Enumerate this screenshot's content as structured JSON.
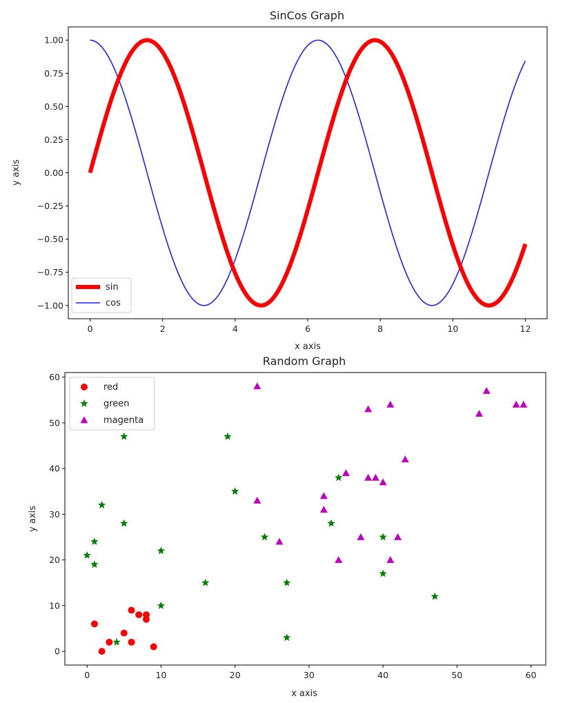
{
  "chart_data": [
    {
      "type": "line",
      "title": "SinCos Graph",
      "xlabel": "x axis",
      "ylabel": "y axis",
      "xlim": [
        -0.6,
        12.6
      ],
      "ylim": [
        -1.1,
        1.1
      ],
      "xticks": [
        "0",
        "2",
        "4",
        "6",
        "8",
        "10",
        "12"
      ],
      "yticks": [
        "−1.00",
        "−0.75",
        "−0.50",
        "−0.25",
        "0.00",
        "0.25",
        "0.50",
        "0.75",
        "1.00"
      ],
      "grid": false,
      "legend_position": "lower-left",
      "series": [
        {
          "name": "sin",
          "function": "sin",
          "x_range": [
            0,
            12
          ],
          "color": "#ff0000",
          "line_style": "thick"
        },
        {
          "name": "cos",
          "function": "cos",
          "x_range": [
            0,
            12
          ],
          "color": "#1f1fff",
          "line_style": "thin"
        }
      ]
    },
    {
      "type": "scatter",
      "title": "Random Graph",
      "xlabel": "x axis",
      "ylabel": "y axis",
      "xlim": [
        -3,
        62
      ],
      "ylim": [
        -3,
        61
      ],
      "xticks": [
        "0",
        "10",
        "20",
        "30",
        "40",
        "50",
        "60"
      ],
      "yticks": [
        "0",
        "10",
        "20",
        "30",
        "40",
        "50",
        "60"
      ],
      "grid": false,
      "legend_position": "upper-left",
      "series": [
        {
          "name": "red",
          "marker": "circle",
          "color": "#ff0000",
          "points": [
            [
              1,
              6
            ],
            [
              2,
              0
            ],
            [
              3,
              2
            ],
            [
              5,
              4
            ],
            [
              6,
              2
            ],
            [
              6,
              9
            ],
            [
              7,
              8
            ],
            [
              8,
              8
            ],
            [
              8,
              7
            ],
            [
              9,
              1
            ]
          ]
        },
        {
          "name": "green",
          "marker": "star",
          "color": "#008000",
          "points": [
            [
              0,
              21
            ],
            [
              1,
              19
            ],
            [
              1,
              24
            ],
            [
              2,
              32
            ],
            [
              4,
              2
            ],
            [
              5,
              28
            ],
            [
              5,
              47
            ],
            [
              10,
              22
            ],
            [
              10,
              10
            ],
            [
              16,
              15
            ],
            [
              19,
              47
            ],
            [
              20,
              35
            ],
            [
              24,
              25
            ],
            [
              27,
              15
            ],
            [
              27,
              3
            ],
            [
              33,
              28
            ],
            [
              34,
              38
            ],
            [
              40,
              25
            ],
            [
              40,
              17
            ],
            [
              47,
              12
            ]
          ]
        },
        {
          "name": "magenta",
          "marker": "triangle",
          "color": "#bf00bf",
          "points": [
            [
              23,
              58
            ],
            [
              23,
              33
            ],
            [
              26,
              24
            ],
            [
              32,
              34
            ],
            [
              32,
              31
            ],
            [
              34,
              20
            ],
            [
              35,
              39
            ],
            [
              37,
              25
            ],
            [
              38,
              53
            ],
            [
              38,
              38
            ],
            [
              39,
              38
            ],
            [
              40,
              37
            ],
            [
              41,
              54
            ],
            [
              41,
              20
            ],
            [
              42,
              25
            ],
            [
              43,
              42
            ],
            [
              53,
              52
            ],
            [
              54,
              57
            ],
            [
              58,
              54
            ],
            [
              59,
              54
            ]
          ]
        }
      ]
    }
  ]
}
